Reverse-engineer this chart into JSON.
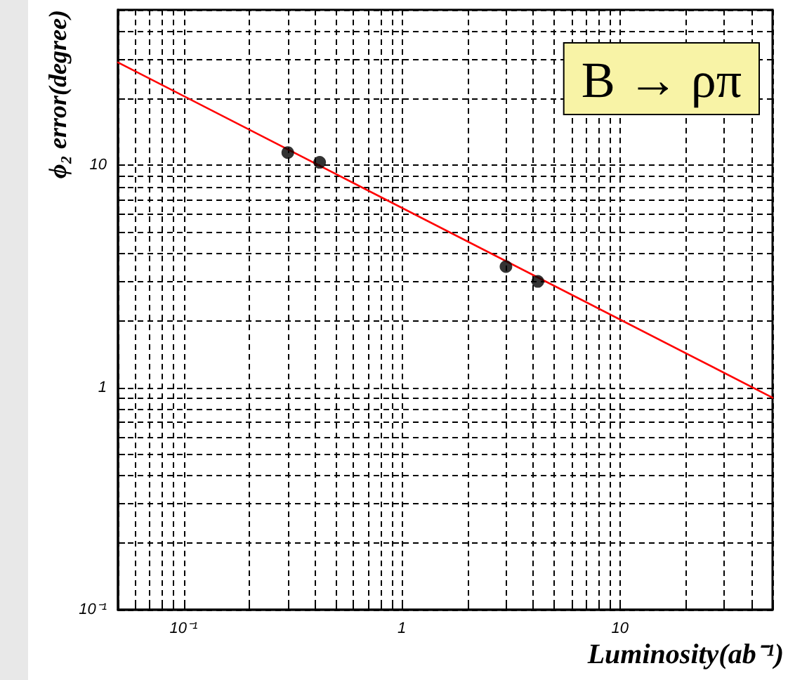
{
  "chart_data": {
    "type": "scatter",
    "xlabel": "Luminosity(ab⁻¹)",
    "ylabel": "ϕ₂ error(degree)",
    "annotations": [
      "B → ρπ"
    ],
    "log": "xy",
    "grid": true,
    "line_style": "solid",
    "series": [
      {
        "x": [
          0.3,
          0.42,
          3,
          4.2
        ],
        "values": [
          11.4,
          10.3,
          3.5,
          3.0
        ],
        "color": "#000000",
        "marker": "circle"
      },
      {
        "type": "line",
        "x": [
          0.05,
          50
        ],
        "values": [
          29,
          0.9
        ],
        "color": "#ff0000",
        "marker": "none"
      }
    ],
    "xlim": [
      0.05,
      50
    ],
    "ylim": [
      0.1,
      50
    ],
    "xticks": [
      {
        "value": 0.05,
        "label": null
      },
      {
        "value": 0.06,
        "label": null
      },
      {
        "value": 0.07,
        "label": null
      },
      {
        "value": 0.08,
        "label": null
      },
      {
        "value": 0.09,
        "label": null
      },
      {
        "value": 0.1,
        "label": "10⁻¹"
      },
      {
        "value": 0.2,
        "label": null
      },
      {
        "value": 0.3,
        "label": null
      },
      {
        "value": 0.4,
        "label": null
      },
      {
        "value": 0.5,
        "label": null
      },
      {
        "value": 0.6,
        "label": null
      },
      {
        "value": 0.7,
        "label": null
      },
      {
        "value": 0.8,
        "label": null
      },
      {
        "value": 0.9,
        "label": null
      },
      1,
      {
        "value": 2,
        "label": null
      },
      {
        "value": 3,
        "label": null
      },
      {
        "value": 4,
        "label": null
      },
      {
        "value": 5,
        "label": null
      },
      {
        "value": 6,
        "label": null
      },
      {
        "value": 7,
        "label": null
      },
      {
        "value": 8,
        "label": null
      },
      {
        "value": 9,
        "label": null
      },
      10,
      {
        "value": 20,
        "label": null
      },
      {
        "value": 30,
        "label": null
      },
      {
        "value": 40,
        "label": null
      },
      {
        "value": 50,
        "label": null
      }
    ],
    "yticks": [
      {
        "value": 0.1,
        "label": "10⁻¹"
      },
      {
        "value": 0.2,
        "label": null
      },
      {
        "value": 0.3,
        "label": null
      },
      {
        "value": 0.4,
        "label": null
      },
      {
        "value": 0.5,
        "label": null
      },
      {
        "value": 0.6,
        "label": null
      },
      {
        "value": 0.7,
        "label": null
      },
      {
        "value": 0.8,
        "label": null
      },
      {
        "value": 0.9,
        "label": null
      },
      1,
      {
        "value": 2,
        "label": null
      },
      {
        "value": 3,
        "label": null
      },
      {
        "value": 4,
        "label": null
      },
      {
        "value": 5,
        "label": null
      },
      {
        "value": 6,
        "label": null
      },
      {
        "value": 7,
        "label": null
      },
      {
        "value": 8,
        "label": null
      },
      {
        "value": 9,
        "label": null
      },
      10,
      {
        "value": 20,
        "label": null
      },
      {
        "value": 30,
        "label": null
      },
      {
        "value": 40,
        "label": null
      },
      {
        "value": 50,
        "label": null
      }
    ]
  }
}
